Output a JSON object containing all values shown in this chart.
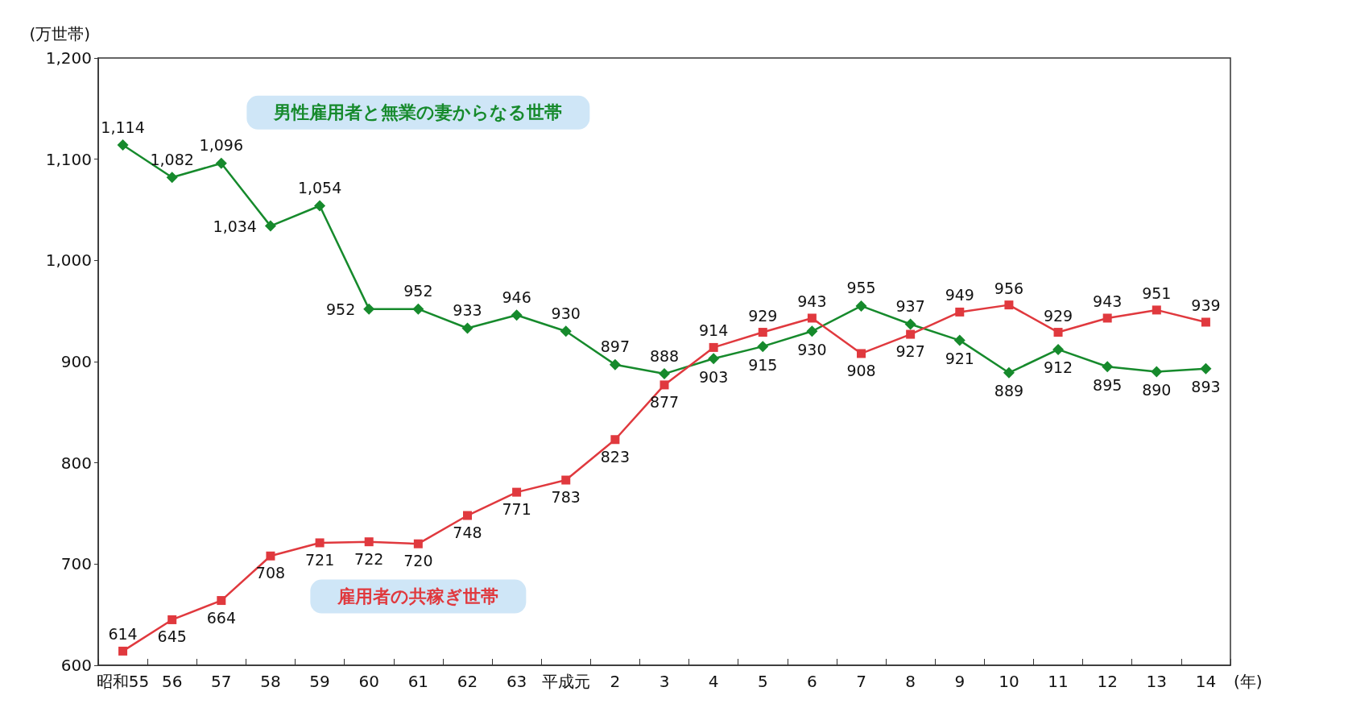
{
  "chart_data": {
    "type": "line",
    "ylabel": "(万世帯)",
    "xlabel": "(年)",
    "categories": [
      "昭和55",
      "56",
      "57",
      "58",
      "59",
      "60",
      "61",
      "62",
      "63",
      "平成元",
      "2",
      "3",
      "4",
      "5",
      "6",
      "7",
      "8",
      "9",
      "10",
      "11",
      "12",
      "13",
      "14"
    ],
    "series": [
      {
        "name": "男性雇用者と無業の妻からなる世帯",
        "color": "#168a2c",
        "marker": "diamond",
        "values": [
          1114,
          1082,
          1096,
          1034,
          1054,
          952,
          952,
          933,
          946,
          930,
          897,
          888,
          903,
          915,
          930,
          955,
          937,
          921,
          889,
          912,
          895,
          890,
          893
        ],
        "value_labels": [
          "1,114",
          "1,082",
          "1,096",
          "1,034",
          "1,054",
          "952",
          "952",
          "933",
          "946",
          "930",
          "897",
          "888",
          "903",
          "915",
          "930",
          "955",
          "937",
          "921",
          "889",
          "912",
          "895",
          "890",
          "893"
        ]
      },
      {
        "name": "雇用者の共稼ぎ世帯",
        "color": "#e0393e",
        "marker": "square",
        "values": [
          614,
          645,
          664,
          708,
          721,
          722,
          720,
          748,
          771,
          783,
          823,
          877,
          914,
          929,
          943,
          908,
          927,
          949,
          956,
          929,
          943,
          951,
          939
        ],
        "value_labels": [
          "614",
          "645",
          "664",
          "708",
          "721",
          "722",
          "720",
          "748",
          "771",
          "783",
          "823",
          "877",
          "914",
          "929",
          "943",
          "908",
          "927",
          "949",
          "956",
          "929",
          "943",
          "951",
          "939"
        ]
      }
    ],
    "ylim": [
      600,
      1200
    ],
    "yticks": [
      600,
      700,
      800,
      900,
      {
        "value": 1000,
        "label": "1,000"
      },
      {
        "value": 1100,
        "label": "1,100"
      },
      {
        "value": 1200,
        "label": "1,200"
      }
    ],
    "grid": false,
    "legend": false
  }
}
